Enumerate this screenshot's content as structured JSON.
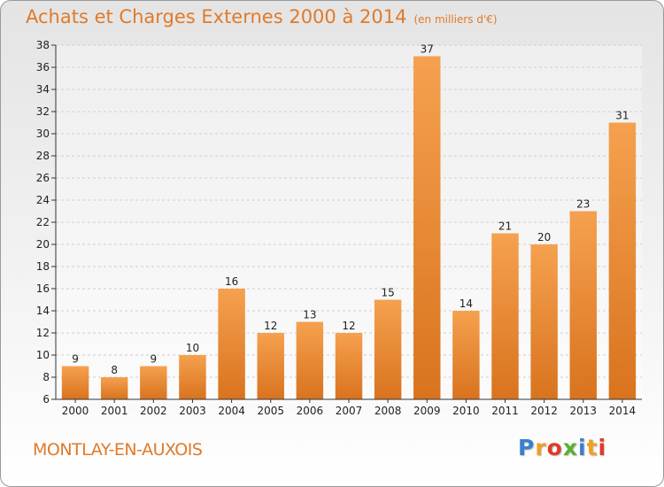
{
  "header": {
    "title": "Achats et Charges Externes 2000 à 2014",
    "unit": "(en milliers d'€)"
  },
  "footer": {
    "commune": "MONTLAY-EN-AUXOIS",
    "logo": [
      "P",
      "r",
      "o",
      "x",
      "i",
      "t",
      "i"
    ],
    "logo_colors": [
      "#3a7fd0",
      "#f0a020",
      "#e03a2a",
      "#5ab030",
      "#3a7fd0",
      "#f0a020",
      "#e03a2a"
    ]
  },
  "chart_data": {
    "type": "bar",
    "title": "Achats et Charges Externes 2000 à 2014",
    "categories": [
      "2000",
      "2001",
      "2002",
      "2003",
      "2004",
      "2005",
      "2006",
      "2007",
      "2008",
      "2009",
      "2010",
      "2011",
      "2012",
      "2013",
      "2014"
    ],
    "values": [
      9,
      8,
      9,
      10,
      16,
      12,
      13,
      12,
      15,
      37,
      14,
      21,
      20,
      23,
      31
    ],
    "ylim": [
      6,
      38
    ],
    "yticks": [
      6,
      8,
      10,
      12,
      14,
      16,
      18,
      20,
      22,
      24,
      26,
      28,
      30,
      32,
      34,
      36,
      38
    ],
    "grid": true,
    "bar_color_top": "#f5a14f",
    "bar_color_bottom": "#d9731e"
  }
}
